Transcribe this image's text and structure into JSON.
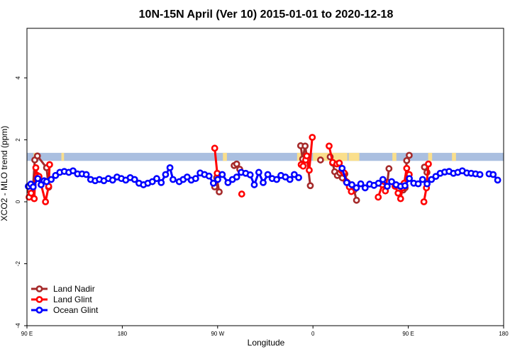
{
  "chart_data": {
    "type": "line",
    "title": "10N-15N April (Ver 10)   2015-01-01 to 2020-12-18",
    "xlabel": "Longitude",
    "ylabel": "XCO2 - MLO trend (ppm)",
    "xlim": [
      -90,
      270
    ],
    "ylim": [
      -4,
      5.6
    ],
    "x_ticks": [
      {
        "value": -90,
        "label": "90 E"
      },
      {
        "value": -18,
        "label": "180"
      },
      {
        "value": 54,
        "label": "90 W"
      },
      {
        "value": 126,
        "label": "0"
      },
      {
        "value": 198,
        "label": "90 E"
      },
      {
        "value": 270,
        "label": "180"
      }
    ],
    "y_ticks": [
      -4,
      -2,
      0,
      2,
      4
    ],
    "grid": false,
    "legend_position": "bottom-left",
    "land_band": {
      "y_min": 1.32,
      "y_max": 1.58,
      "color": "#aabfe0",
      "land_color": "#fadf8c",
      "land_segments": [
        [
          -85,
          -82
        ],
        [
          -64,
          -62
        ],
        [
          58,
          61
        ],
        [
          114,
          118
        ],
        [
          126,
          150
        ],
        [
          149,
          152
        ],
        [
          153,
          161
        ],
        [
          186,
          189
        ],
        [
          213,
          216
        ],
        [
          231,
          234
        ]
      ]
    },
    "series": [
      {
        "name": "Land Nadir",
        "color": "#a52a2a",
        "segments": [
          [
            [
              -87.6,
              0.35
            ],
            [
              -86.1,
              0.22
            ],
            [
              -85.3,
              0.55
            ],
            [
              -84.1,
              1.35
            ],
            [
              -82.1,
              1.48
            ],
            [
              -75.2,
              1.1
            ],
            [
              -73.6,
              0.47
            ]
          ],
          [
            [
              51.8,
              0.48
            ],
            [
              53.3,
              0.78
            ],
            [
              55.2,
              0.32
            ]
          ],
          [
            [
              66.5,
              1.17
            ],
            [
              68.4,
              1.22
            ],
            [
              70.7,
              1.05
            ]
          ],
          [
            [
              116.7,
              1.81
            ],
            [
              118.2,
              1.38
            ],
            [
              120.1,
              1.8
            ],
            [
              121.3,
              1.48
            ],
            [
              124.0,
              0.52
            ]
          ],
          [
            [
              131.7,
              1.35
            ]
          ],
          [
            [
              139.0,
              1.45
            ],
            [
              140.9,
              1.25
            ],
            [
              142.4,
              0.97
            ],
            [
              144.4,
              0.85
            ],
            [
              146.3,
              0.93
            ],
            [
              148.2,
              0.77
            ],
            [
              150.1,
              0.9
            ],
            [
              152.0,
              0.62
            ],
            [
              153.5,
              0.52
            ],
            [
              155.4,
              0.45
            ],
            [
              157.0,
              0.38
            ],
            [
              158.9,
              0.05
            ]
          ],
          [
            [
              180.7,
              0.5
            ],
            [
              182.2,
              0.63
            ],
            [
              183.4,
              1.07
            ]
          ],
          [
            [
              191.8,
              0.5
            ],
            [
              194.1,
              0.38
            ],
            [
              195.6,
              0.45
            ],
            [
              196.8,
              1.33
            ],
            [
              198.7,
              1.5
            ]
          ],
          [
            [
              210.2,
              1.12
            ],
            [
              212.1,
              0.95
            ]
          ]
        ]
      },
      {
        "name": "Land Glint",
        "color": "#ff0000",
        "segments": [
          [
            [
              -88.4,
              0.15
            ],
            [
              -86.8,
              0.28
            ],
            [
              -84.5,
              0.1
            ],
            [
              -83.3,
              1.1
            ],
            [
              -82.2,
              0.85
            ],
            [
              -80.9,
              0.82
            ],
            [
              -76.0,
              0.0
            ],
            [
              -73.6,
              0.5
            ],
            [
              -72.9,
              1.2
            ]
          ],
          [
            [
              51.8,
              1.73
            ],
            [
              53.7,
              0.92
            ]
          ],
          [
            [
              72.2,
              0.25
            ]
          ],
          [
            [
              117.1,
              1.2
            ],
            [
              118.6,
              1.15
            ],
            [
              120.5,
              1.35
            ],
            [
              121.3,
              1.48
            ],
            [
              123.2,
              1.02
            ],
            [
              125.5,
              2.08
            ]
          ],
          [
            [
              138.2,
              1.8
            ],
            [
              140.9,
              1.27
            ],
            [
              144.0,
              1.22
            ],
            [
              145.9,
              1.25
            ],
            [
              147.8,
              1.0
            ],
            [
              149.3,
              0.94
            ],
            [
              151.2,
              0.65
            ],
            [
              153.5,
              0.48
            ],
            [
              155.0,
              0.33
            ]
          ],
          [
            [
              175.3,
              0.15
            ],
            [
              178.4,
              0.55
            ],
            [
              179.9,
              0.65
            ],
            [
              180.7,
              0.35
            ]
          ],
          [
            [
              188.0,
              0.5
            ],
            [
              190.3,
              0.28
            ],
            [
              192.2,
              0.1
            ],
            [
              193.7,
              0.45
            ],
            [
              194.9,
              0.6
            ],
            [
              196.8,
              1.08
            ],
            [
              198.7,
              0.88
            ]
          ],
          [
            [
              209.8,
              0.0
            ],
            [
              211.7,
              0.45
            ],
            [
              213.2,
              1.22
            ]
          ]
        ]
      },
      {
        "name": "Ocean Glint",
        "color": "#0000ff",
        "segments": [
          [
            [
              -89.0,
              0.5
            ],
            [
              -87.1,
              0.57
            ],
            [
              -85.3,
              0.48
            ],
            [
              -81.8,
              0.75
            ],
            [
              -79.3,
              0.55
            ],
            [
              -77.0,
              0.68
            ],
            [
              -75.2,
              0.65
            ],
            [
              -71.7,
              0.72
            ],
            [
              -68.4,
              0.85
            ],
            [
              -65.2,
              0.95
            ],
            [
              -61.8,
              0.98
            ],
            [
              -58.4,
              0.95
            ],
            [
              -55.2,
              1.0
            ],
            [
              -51.8,
              0.9
            ],
            [
              -48.4,
              0.9
            ],
            [
              -45.2,
              0.88
            ],
            [
              -41.9,
              0.72
            ],
            [
              -38.5,
              0.68
            ],
            [
              -35.3,
              0.72
            ],
            [
              -31.9,
              0.68
            ],
            [
              -28.5,
              0.75
            ],
            [
              -25.3,
              0.7
            ],
            [
              -22.0,
              0.8
            ],
            [
              -18.7,
              0.75
            ],
            [
              -15.4,
              0.7
            ],
            [
              -12.0,
              0.78
            ],
            [
              -8.7,
              0.72
            ],
            [
              -5.4,
              0.6
            ],
            [
              -2.0,
              0.55
            ],
            [
              1.3,
              0.6
            ],
            [
              4.7,
              0.65
            ],
            [
              8.0,
              0.75
            ],
            [
              11.4,
              0.62
            ],
            [
              14.7,
              0.88
            ],
            [
              18.0,
              1.1
            ],
            [
              20.3,
              0.72
            ],
            [
              25.0,
              0.65
            ],
            [
              28.0,
              0.72
            ],
            [
              31.0,
              0.8
            ],
            [
              34.1,
              0.7
            ],
            [
              37.4,
              0.75
            ],
            [
              40.8,
              0.93
            ],
            [
              44.1,
              0.88
            ],
            [
              47.5,
              0.83
            ],
            [
              50.8,
              0.6
            ],
            [
              54.1,
              0.72
            ],
            [
              57.5,
              0.88
            ],
            [
              61.8,
              0.62
            ],
            [
              65.2,
              0.72
            ],
            [
              68.4,
              0.8
            ],
            [
              71.8,
              0.95
            ]
          ],
          [
            [
              75.2,
              0.92
            ],
            [
              78.6,
              0.87
            ],
            [
              81.7,
              0.55
            ],
            [
              85.1,
              0.95
            ],
            [
              88.4,
              0.62
            ],
            [
              91.9,
              0.88
            ],
            [
              95.2,
              0.75
            ],
            [
              98.6,
              0.72
            ],
            [
              101.8,
              0.85
            ],
            [
              105.2,
              0.8
            ],
            [
              108.6,
              0.72
            ],
            [
              111.9,
              0.88
            ],
            [
              115.2,
              0.78
            ]
          ],
          [
            [
              148.0,
              1.08
            ],
            [
              151.5,
              0.62
            ],
            [
              155.4,
              0.55
            ],
            [
              158.8,
              0.45
            ],
            [
              162.1,
              0.58
            ],
            [
              165.4,
              0.45
            ],
            [
              168.8,
              0.57
            ],
            [
              172.1,
              0.53
            ],
            [
              175.5,
              0.6
            ],
            [
              178.8,
              0.72
            ],
            [
              182.1,
              0.5
            ],
            [
              185.4,
              0.65
            ],
            [
              188.8,
              0.55
            ],
            [
              192.2,
              0.5
            ],
            [
              195.5,
              0.52
            ],
            [
              198.8,
              0.75
            ],
            [
              202.1,
              0.6
            ],
            [
              205.5,
              0.58
            ],
            [
              208.8,
              0.72
            ],
            [
              212.2,
              0.58
            ],
            [
              215.5,
              0.72
            ],
            [
              218.8,
              0.82
            ],
            [
              222.1,
              0.92
            ],
            [
              225.5,
              0.96
            ],
            [
              228.8,
              0.98
            ],
            [
              232.1,
              0.92
            ],
            [
              235.4,
              0.95
            ],
            [
              238.8,
              1.0
            ],
            [
              242.2,
              0.93
            ],
            [
              245.5,
              0.92
            ],
            [
              248.8,
              0.9
            ],
            [
              252.1,
              0.88
            ]
          ],
          [
            [
              259.0,
              0.9
            ],
            [
              262.1,
              0.88
            ],
            [
              265.5,
              0.7
            ]
          ]
        ]
      }
    ]
  }
}
